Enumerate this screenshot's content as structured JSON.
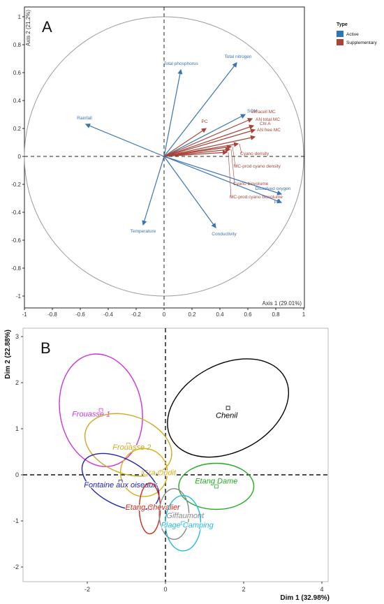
{
  "chart_data": [
    {
      "panel": "A",
      "type": "scatter",
      "subtype": "pca-correlation-circle",
      "xlabel": "Axis 1 (29.01%)",
      "ylabel": "Axis 2 (21.2%)",
      "xlim": [
        -1,
        1
      ],
      "ylim": [
        -1,
        1
      ],
      "xticks": [
        "-1",
        "-0.8",
        "-0.6",
        "-0.4",
        "-0.2",
        "0",
        "0.2",
        "0.4",
        "0.6",
        "0.8",
        "1"
      ],
      "yticks": [
        "-1",
        "-0.8",
        "-0.6",
        "-0.4",
        "-0.2",
        "0",
        "0.2",
        "0.4",
        "0.6",
        "0.8",
        "1"
      ],
      "legend": {
        "title": "Type",
        "position": "right",
        "items": [
          {
            "label": "Active",
            "color": "#2e75b6"
          },
          {
            "label": "Supplementary",
            "color": "#a94438"
          }
        ]
      },
      "series": [
        {
          "name": "Active",
          "color": "#3a74b3",
          "points": [
            {
              "label": "Total phosphorus",
              "x": 0.12,
              "y": 0.62
            },
            {
              "label": "Total nitrogen",
              "x": 0.52,
              "y": 0.67
            },
            {
              "label": "Rainfall",
              "x": -0.56,
              "y": 0.23
            },
            {
              "label": "SOM",
              "x": 0.58,
              "y": 0.3
            },
            {
              "label": "Dissolved oxygen",
              "x": 0.84,
              "y": -0.27
            },
            {
              "label": "pH",
              "x": 0.84,
              "y": -0.33
            },
            {
              "label": "Temperature",
              "x": -0.15,
              "y": -0.49
            },
            {
              "label": "Conductivity",
              "x": 0.37,
              "y": -0.51
            }
          ]
        },
        {
          "name": "Supplementary",
          "color": "#a94438",
          "points": [
            {
              "label": "PC",
              "x": 0.3,
              "y": 0.2
            },
            {
              "label": "Intracell MC",
              "x": 0.63,
              "y": 0.27
            },
            {
              "label": "AN total MC",
              "x": 0.64,
              "y": 0.22
            },
            {
              "label": "Chl A",
              "x": 0.65,
              "y": 0.19
            },
            {
              "label": "AN free MC",
              "x": 0.65,
              "y": 0.14
            },
            {
              "label": "Cyano density",
              "x": 0.53,
              "y": 0.09
            },
            {
              "label": "MC-prod cyano density",
              "x": 0.48,
              "y": 0.07
            },
            {
              "label": "Cyano biovolume",
              "x": 0.47,
              "y": 0.05
            },
            {
              "label": "MC-prod cyano biovolume",
              "x": 0.45,
              "y": 0.03
            }
          ]
        }
      ]
    },
    {
      "panel": "B",
      "type": "scatter",
      "subtype": "pca-individuals-confidence-ellipses",
      "xlabel": "Dim 1 (32.98%)",
      "ylabel": "Dim 2 (22.88%)",
      "xlim": [
        -3.5,
        4.1
      ],
      "ylim": [
        -2.35,
        3.05
      ],
      "xticks": [
        "-2",
        "0",
        "2",
        "4"
      ],
      "yticks": [
        "-2",
        "-1",
        "0",
        "1",
        "2",
        "3"
      ],
      "groups": [
        {
          "label": "Chenil",
          "color": "#000000",
          "cx": 1.6,
          "cy": 1.45,
          "rx": 1.65,
          "ry": 0.95,
          "angle": 28
        },
        {
          "label": "Frouasse 1",
          "color": "#cc33dd",
          "cx": -1.65,
          "cy": 1.4,
          "rx": 1.05,
          "ry": 1.23,
          "angle": 10
        },
        {
          "label": "Frouasse 2",
          "color": "#ccaa22",
          "cx": -0.95,
          "cy": 0.65,
          "rx": 1.15,
          "ry": 0.63,
          "angle": -20
        },
        {
          "label": "Gra Ondit",
          "color": "#d9b015",
          "cx": -0.55,
          "cy": 0.05,
          "rx": 0.6,
          "ry": 0.52,
          "angle": 0
        },
        {
          "label": "Fontaine aux oiseaux",
          "color": "#2222aa",
          "cx": -1.15,
          "cy": -0.15,
          "rx": 1.07,
          "ry": 0.5,
          "angle": -28
        },
        {
          "label": "Etang Chevalier",
          "color": "#cc2a1a",
          "cx": -0.4,
          "cy": -0.73,
          "rx": 0.27,
          "ry": 0.55,
          "angle": 0
        },
        {
          "label": "Etang Dame",
          "color": "#22aa22",
          "cx": 1.3,
          "cy": -0.25,
          "rx": 0.96,
          "ry": 0.5,
          "angle": 0
        },
        {
          "label": "Giffaumont",
          "color": "#888888",
          "cx": 0.22,
          "cy": -0.85,
          "rx": 0.38,
          "ry": 0.55,
          "angle": 0
        },
        {
          "label": "Plage Camping",
          "color": "#22bbdd",
          "cx": 0.45,
          "cy": -1.05,
          "rx": 0.45,
          "ry": 0.6,
          "angle": 0
        }
      ]
    }
  ]
}
